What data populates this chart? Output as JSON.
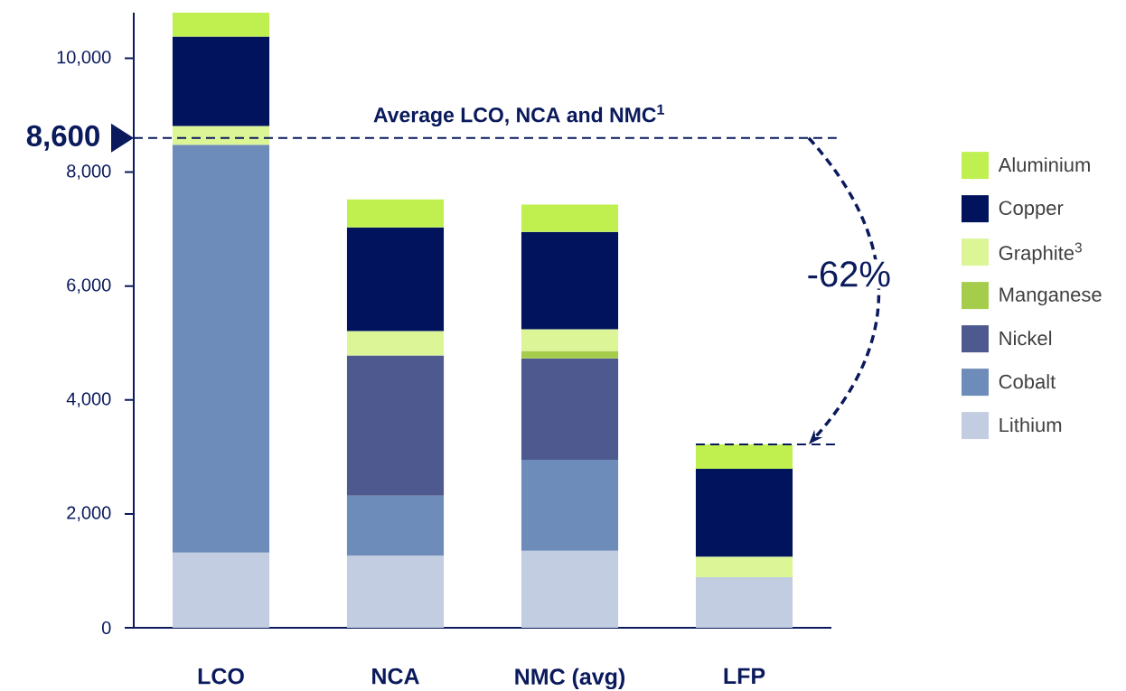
{
  "chart_data": {
    "type": "bar",
    "stacked": true,
    "categories": [
      "LCO",
      "NCA",
      "NMC (avg)",
      "LFP"
    ],
    "series": [
      {
        "name": "Lithium",
        "color": "#c3cde1",
        "values": [
          1320,
          1270,
          1350,
          890
        ]
      },
      {
        "name": "Cobalt",
        "color": "#6e8cb9",
        "values": [
          7160,
          1050,
          1600,
          null
        ]
      },
      {
        "name": "Nickel",
        "color": "#4e5a8f",
        "values": [
          null,
          2460,
          1780,
          null
        ]
      },
      {
        "name": "Manganese",
        "color": "#a5cd4b",
        "values": [
          null,
          null,
          130,
          null
        ]
      },
      {
        "name": "Graphite$^{3}$",
        "color": "#dcf597",
        "values": [
          330,
          430,
          380,
          360
        ]
      },
      {
        "name": "Copper",
        "color": "#00135c",
        "values": [
          1570,
          1820,
          1710,
          1540
        ]
      },
      {
        "name": "Aluminium",
        "color": "#c0f050",
        "values": [
          420,
          490,
          480,
          430
        ]
      }
    ],
    "ylim": [
      0,
      10800
    ],
    "yticks": [
      0,
      {
        "value": 2000,
        "label": "2,000"
      },
      {
        "value": 4000,
        "label": "4,000"
      },
      {
        "value": 6000,
        "label": "6,000"
      },
      {
        "value": 8000,
        "label": "8,000"
      },
      {
        "value": 10000,
        "label": "10,000"
      }
    ],
    "ref_lines": [
      {
        "axis": "y",
        "value": 8600,
        "label": "Average LCO, NCA and NMC$^{1}$",
        "color": "#0a1a5c",
        "line_style": "dashed"
      },
      {
        "axis": "y",
        "value": 3220,
        "color": "#0a1a5c",
        "line_style": "dashed"
      }
    ],
    "annotations": [
      "8,600",
      "-62%"
    ],
    "legend": "right",
    "grid": false
  }
}
